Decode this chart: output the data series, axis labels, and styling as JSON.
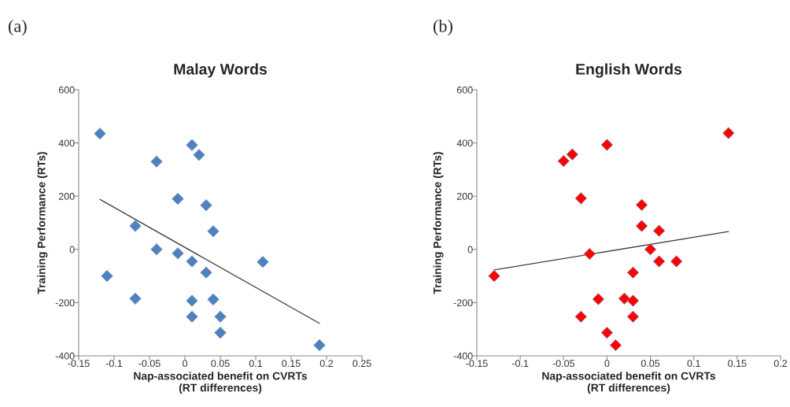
{
  "chart_data": [
    {
      "type": "scatter",
      "title": "Malay Words",
      "xlabel": "Nap-associated benefit on CVRTs\n(RT differences)",
      "ylabel": "Training Performance (RTs)",
      "annotations": [
        "(a)"
      ],
      "xlim": [
        -0.15,
        0.25
      ],
      "xticks": [
        -0.15,
        -0.1,
        -0.05,
        0,
        0.05,
        0.1,
        0.15,
        0.2,
        0.25
      ],
      "ylim": [
        -400,
        600
      ],
      "yticks": [
        -400,
        -200,
        0,
        200,
        400,
        600
      ],
      "grid": false,
      "legend": false,
      "series": [
        {
          "marker": "diamond",
          "color": "#4f81bd",
          "x": [
            -0.12,
            0.01,
            0.02,
            -0.04,
            -0.01,
            0.03,
            0.04,
            -0.07,
            -0.04,
            -0.01,
            0.01,
            0.11,
            -0.11,
            0.03,
            -0.07,
            0.01,
            0.04,
            0.01,
            0.05,
            0.05,
            0.19
          ],
          "values": [
            435,
            392,
            355,
            330,
            190,
            166,
            68,
            88,
            0,
            -15,
            -45,
            -47,
            -100,
            -87,
            -185,
            -193,
            -188,
            -253,
            -253,
            -313,
            -360
          ]
        },
        {
          "type": "line",
          "marker": "none",
          "line_style": "solid",
          "color": "#404040",
          "x": [
            -0.12,
            0.19
          ],
          "values": [
            188,
            -278
          ]
        }
      ]
    },
    {
      "type": "scatter",
      "title": "English Words",
      "xlabel": "Nap-associated benefit on CVRTs\n(RT differences)",
      "ylabel": "Training Performance (RTs)",
      "annotations": [
        "(b)"
      ],
      "xlim": [
        -0.15,
        0.2
      ],
      "xticks": [
        -0.15,
        -0.1,
        -0.05,
        0,
        0.05,
        0.1,
        0.15,
        0.2
      ],
      "ylim": [
        -400,
        600
      ],
      "yticks": [
        -400,
        -200,
        0,
        200,
        400,
        600
      ],
      "grid": false,
      "legend": false,
      "series": [
        {
          "marker": "diamond",
          "color": "#ff0000",
          "x": [
            0.14,
            0,
            -0.04,
            -0.05,
            -0.03,
            0.04,
            0.04,
            0.06,
            0.05,
            -0.02,
            0.06,
            0.08,
            -0.13,
            0.03,
            -0.01,
            0.02,
            0.03,
            -0.03,
            0.03,
            0,
            0.01
          ],
          "values": [
            437,
            393,
            357,
            332,
            192,
            167,
            88,
            70,
            0,
            -17,
            -45,
            -45,
            -100,
            -87,
            -187,
            -185,
            -193,
            -253,
            -253,
            -313,
            -360
          ]
        },
        {
          "type": "line",
          "marker": "none",
          "line_style": "solid",
          "color": "#404040",
          "x": [
            -0.13,
            0.14
          ],
          "values": [
            -77,
            67
          ]
        }
      ]
    }
  ]
}
